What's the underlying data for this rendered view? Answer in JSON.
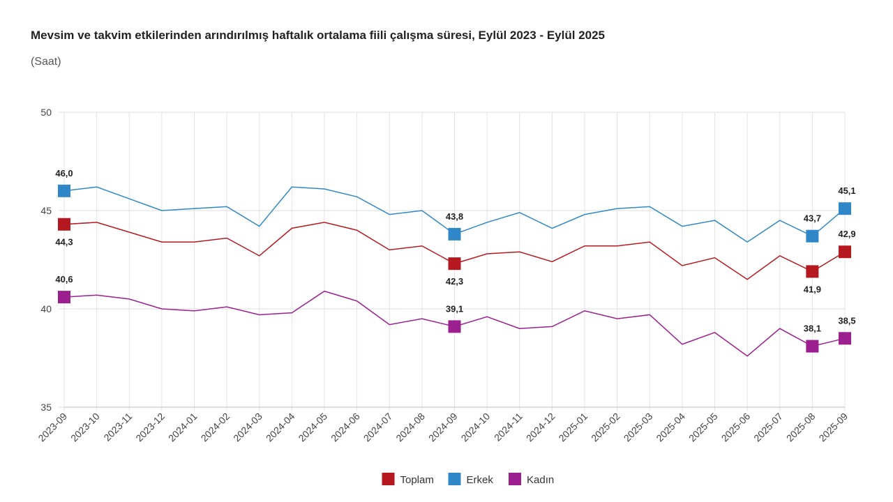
{
  "chart_data": {
    "type": "line",
    "title": "Mevsim ve takvim etkilerinden arındırılmış haftalık ortalama fiili çalışma süresi, Eylül 2023 - Eylül 2025",
    "subtitle": "(Saat)",
    "categories": [
      "2023-09",
      "2023-10",
      "2023-11",
      "2023-12",
      "2024-01",
      "2024-02",
      "2024-03",
      "2024-04",
      "2024-05",
      "2024-06",
      "2024-07",
      "2024-08",
      "2024-09",
      "2024-10",
      "2024-11",
      "2024-12",
      "2025-01",
      "2025-02",
      "2025-03",
      "2025-04",
      "2025-05",
      "2025-06",
      "2025-07",
      "2025-08",
      "2025-09"
    ],
    "series": [
      {
        "name": "Toplam",
        "color": "#b5191f",
        "values": [
          44.3,
          44.4,
          43.9,
          43.4,
          43.4,
          43.6,
          42.7,
          44.1,
          44.4,
          44.0,
          43.0,
          43.2,
          42.3,
          42.8,
          42.9,
          42.4,
          43.2,
          43.2,
          43.4,
          42.2,
          42.6,
          41.5,
          42.7,
          41.9,
          42.9
        ],
        "value_labels": [
          "44,3",
          null,
          null,
          null,
          null,
          null,
          null,
          null,
          null,
          null,
          null,
          null,
          "42,3",
          null,
          null,
          null,
          null,
          null,
          null,
          null,
          null,
          null,
          null,
          "41,9",
          "42,9"
        ]
      },
      {
        "name": "Erkek",
        "color": "#2f87c8",
        "values": [
          46.0,
          46.2,
          45.6,
          45.0,
          45.1,
          45.2,
          44.2,
          46.2,
          46.1,
          45.7,
          44.8,
          45.0,
          43.8,
          44.4,
          44.9,
          44.1,
          44.8,
          45.1,
          45.2,
          44.2,
          44.5,
          43.4,
          44.5,
          43.7,
          45.1
        ],
        "value_labels": [
          "46,0",
          null,
          null,
          null,
          null,
          null,
          null,
          null,
          null,
          null,
          null,
          null,
          "43,8",
          null,
          null,
          null,
          null,
          null,
          null,
          null,
          null,
          null,
          null,
          "43,7",
          "45,1"
        ]
      },
      {
        "name": "Kadın",
        "color": "#9c1f8f",
        "values": [
          40.6,
          40.7,
          40.5,
          40.0,
          39.9,
          40.1,
          39.7,
          39.8,
          40.9,
          40.4,
          39.2,
          39.5,
          39.1,
          39.6,
          39.0,
          39.1,
          39.9,
          39.5,
          39.7,
          38.2,
          38.8,
          37.6,
          39.0,
          38.1,
          38.5
        ],
        "value_labels": [
          "40,6",
          null,
          null,
          null,
          null,
          null,
          null,
          null,
          null,
          null,
          null,
          null,
          "39,1",
          null,
          null,
          null,
          null,
          null,
          null,
          null,
          null,
          null,
          null,
          "38,1",
          "38,5"
        ]
      }
    ],
    "ylim": [
      35,
      50
    ],
    "yticks": [
      35,
      40,
      45,
      50
    ],
    "grid": true,
    "legend": "bottom"
  }
}
